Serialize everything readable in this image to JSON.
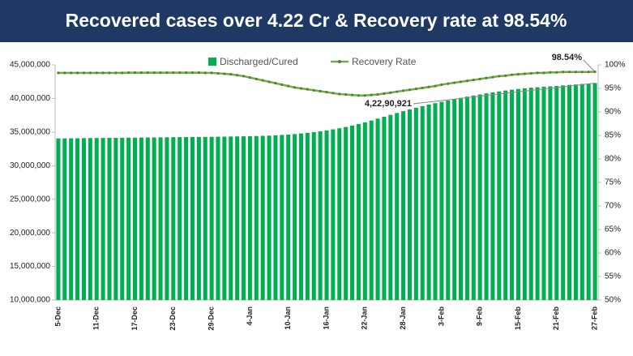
{
  "chart_data": {
    "type": "bar_line",
    "title": "Recovered cases over 4.22 Cr & Recovery rate at 98.54%",
    "categories": [
      "5-Dec",
      null,
      null,
      null,
      null,
      null,
      "11-Dec",
      null,
      null,
      null,
      null,
      null,
      "17-Dec",
      null,
      null,
      null,
      null,
      null,
      "23-Dec",
      null,
      null,
      null,
      null,
      null,
      "29-Dec",
      null,
      null,
      null,
      null,
      null,
      "4-Jan",
      null,
      null,
      null,
      null,
      null,
      "10-Jan",
      null,
      null,
      null,
      null,
      null,
      "16-Jan",
      null,
      null,
      null,
      null,
      null,
      "22-Jan",
      null,
      null,
      null,
      null,
      null,
      "28-Jan",
      null,
      null,
      null,
      null,
      null,
      "3-Feb",
      null,
      null,
      null,
      null,
      null,
      "9-Feb",
      null,
      null,
      null,
      null,
      null,
      "15-Feb",
      null,
      null,
      null,
      null,
      null,
      "21-Feb",
      null,
      null,
      null,
      null,
      null,
      "27-Feb"
    ],
    "series": [
      {
        "name": "Discharged/Cured",
        "color": "#00b050",
        "axis": "y",
        "values": [
          34050000,
          34060000,
          34070000,
          34080000,
          34095000,
          34105000,
          34115000,
          34125000,
          34135000,
          34145000,
          34155000,
          34165000,
          34175000,
          34185000,
          34195000,
          34205000,
          34215000,
          34225000,
          34235000,
          34245000,
          34255000,
          34265000,
          34275000,
          34285000,
          34295000,
          34310000,
          34325000,
          34340000,
          34355000,
          34370000,
          34385000,
          34410000,
          34440000,
          34475000,
          34520000,
          34570000,
          34630000,
          34700000,
          34790000,
          34890000,
          35000000,
          35120000,
          35250000,
          35400000,
          35570000,
          35760000,
          35970000,
          36200000,
          36450000,
          36720000,
          37000000,
          37280000,
          37560000,
          37840000,
          38110000,
          38370000,
          38620000,
          38860000,
          39090000,
          39300000,
          39500000,
          39700000,
          39900000,
          40090000,
          40270000,
          40440000,
          40600000,
          40760000,
          40910000,
          41050000,
          41180000,
          41300000,
          41410000,
          41510000,
          41600000,
          41680000,
          41750000,
          41810000,
          41870000,
          41950000,
          42020000,
          42090000,
          42160000,
          42230000,
          42290921
        ],
        "value_labels": [
          null,
          null,
          null,
          null,
          null,
          null,
          null,
          null,
          null,
          null,
          null,
          null,
          null,
          null,
          null,
          null,
          null,
          null,
          null,
          null,
          null,
          null,
          null,
          null,
          null,
          null,
          null,
          null,
          null,
          null,
          null,
          null,
          null,
          null,
          null,
          null,
          null,
          null,
          null,
          null,
          null,
          null,
          null,
          null,
          null,
          null,
          null,
          null,
          null,
          null,
          null,
          null,
          null,
          null,
          null,
          null,
          null,
          null,
          null,
          null,
          null,
          null,
          null,
          null,
          null,
          null,
          null,
          null,
          null,
          null,
          null,
          null,
          null,
          null,
          null,
          null,
          null,
          null,
          null,
          null,
          null,
          null,
          null,
          null,
          "4,22,90,921"
        ]
      },
      {
        "name": "Recovery Rate",
        "color": "#70ad47",
        "axis": "y2",
        "values": [
          98.3,
          98.3,
          98.3,
          98.3,
          98.3,
          98.3,
          98.3,
          98.3,
          98.3,
          98.3,
          98.3,
          98.35,
          98.35,
          98.35,
          98.35,
          98.35,
          98.35,
          98.35,
          98.35,
          98.35,
          98.35,
          98.35,
          98.35,
          98.3,
          98.3,
          98.2,
          98.1,
          98.0,
          97.8,
          97.6,
          97.3,
          97.0,
          96.7,
          96.4,
          96.1,
          95.8,
          95.5,
          95.2,
          95.0,
          94.8,
          94.6,
          94.4,
          94.2,
          94.0,
          93.8,
          93.7,
          93.6,
          93.5,
          93.5,
          93.6,
          93.7,
          93.9,
          94.1,
          94.3,
          94.5,
          94.7,
          94.9,
          95.1,
          95.3,
          95.5,
          95.8,
          96.0,
          96.2,
          96.4,
          96.6,
          96.8,
          97.0,
          97.2,
          97.4,
          97.6,
          97.7,
          97.9,
          98.0,
          98.1,
          98.2,
          98.3,
          98.3,
          98.4,
          98.4,
          98.5,
          98.5,
          98.5,
          98.5,
          98.5,
          98.54
        ],
        "value_labels": [
          null,
          null,
          null,
          null,
          null,
          null,
          null,
          null,
          null,
          null,
          null,
          null,
          null,
          null,
          null,
          null,
          null,
          null,
          null,
          null,
          null,
          null,
          null,
          null,
          null,
          null,
          null,
          null,
          null,
          null,
          null,
          null,
          null,
          null,
          null,
          null,
          null,
          null,
          null,
          null,
          null,
          null,
          null,
          null,
          null,
          null,
          null,
          null,
          null,
          null,
          null,
          null,
          null,
          null,
          null,
          null,
          null,
          null,
          null,
          null,
          null,
          null,
          null,
          null,
          null,
          null,
          null,
          null,
          null,
          null,
          null,
          null,
          null,
          null,
          null,
          null,
          null,
          null,
          null,
          null,
          null,
          null,
          null,
          null,
          "98.54%"
        ]
      }
    ],
    "ylim": [
      10000000,
      45000000
    ],
    "yticks": [
      {
        "value": 10000000,
        "label": "10,000,000"
      },
      {
        "value": 15000000,
        "label": "15,000,000"
      },
      {
        "value": 20000000,
        "label": "20,000,000"
      },
      {
        "value": 25000000,
        "label": "25,000,000"
      },
      {
        "value": 30000000,
        "label": "30,000,000"
      },
      {
        "value": 35000000,
        "label": "35,000,000"
      },
      {
        "value": 40000000,
        "label": "40,000,000"
      },
      {
        "value": 45000000,
        "label": "45,000,000"
      }
    ],
    "y2lim": [
      50,
      100
    ],
    "y2ticks": [
      {
        "value": 50,
        "label": "50%"
      },
      {
        "value": 55,
        "label": "55%"
      },
      {
        "value": 60,
        "label": "60%"
      },
      {
        "value": 65,
        "label": "65%"
      },
      {
        "value": 70,
        "label": "70%"
      },
      {
        "value": 75,
        "label": "75%"
      },
      {
        "value": 80,
        "label": "80%"
      },
      {
        "value": 85,
        "label": "85%"
      },
      {
        "value": 90,
        "label": "90%"
      },
      {
        "value": 95,
        "label": "95%"
      },
      {
        "value": 100,
        "label": "100%"
      }
    ],
    "legend": "top"
  }
}
